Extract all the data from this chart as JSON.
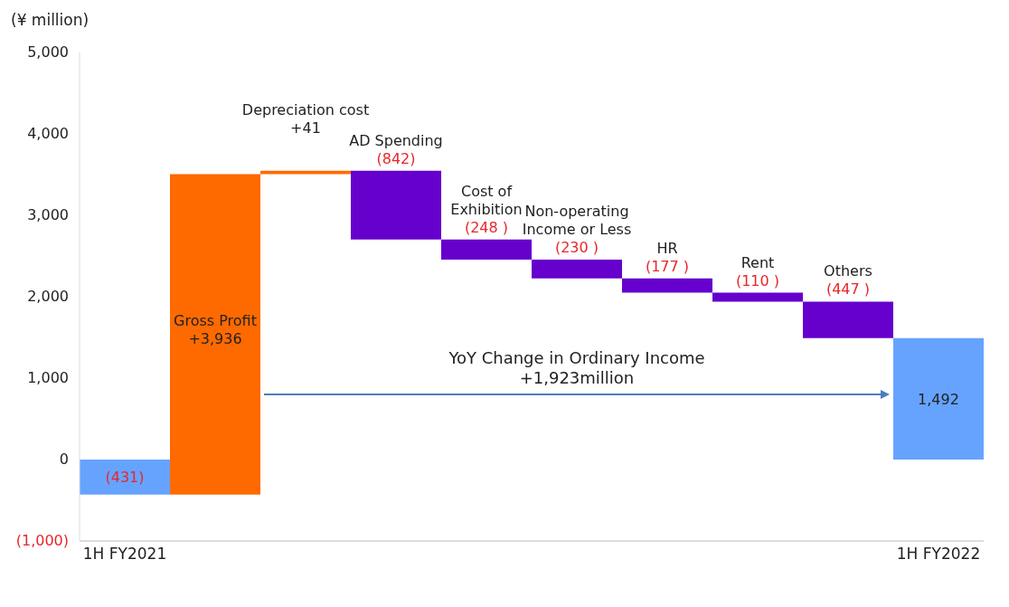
{
  "chart_data": {
    "type": "bar",
    "ylabel": "(¥ million)",
    "categories": [
      "1H FY2021",
      "Gross Profit",
      "Depreciation cost",
      "AD Spending",
      "Cost of Exhibition",
      "Non-operating Income or Less",
      "HR",
      "Rent",
      "Others",
      "1H FY2022"
    ],
    "base": [
      0,
      -431,
      3505,
      3546,
      2704,
      2456,
      2226,
      2049,
      1939,
      0
    ],
    "values": [
      -431,
      3936,
      41,
      -842,
      -248,
      -230,
      -177,
      -110,
      -447,
      1492
    ],
    "colors": [
      "#66a3ff",
      "#ff6a00",
      "#ff6a00",
      "#6600cc",
      "#6600cc",
      "#6600cc",
      "#6600cc",
      "#6600cc",
      "#6600cc",
      "#66a3ff"
    ],
    "value_labels": [
      "(431)",
      "+3,936",
      "+41",
      "(842)",
      "(248 )",
      "(230 )",
      "(177 )",
      "(110 )",
      "(447 )",
      "1,492"
    ],
    "ylim": [
      -1000,
      5000
    ],
    "yticks": [
      {
        "value": -1000,
        "label": "(1,000)"
      },
      0,
      {
        "value": 1000,
        "label": "1,000"
      },
      {
        "value": 2000,
        "label": "2,000"
      },
      {
        "value": 3000,
        "label": "3,000"
      },
      {
        "value": 4000,
        "label": "4,000"
      },
      {
        "value": 5000,
        "label": "5,000"
      }
    ],
    "annotations": [
      "YoY Change in Ordinary Income\n+1,923million"
    ],
    "grid": false
  }
}
